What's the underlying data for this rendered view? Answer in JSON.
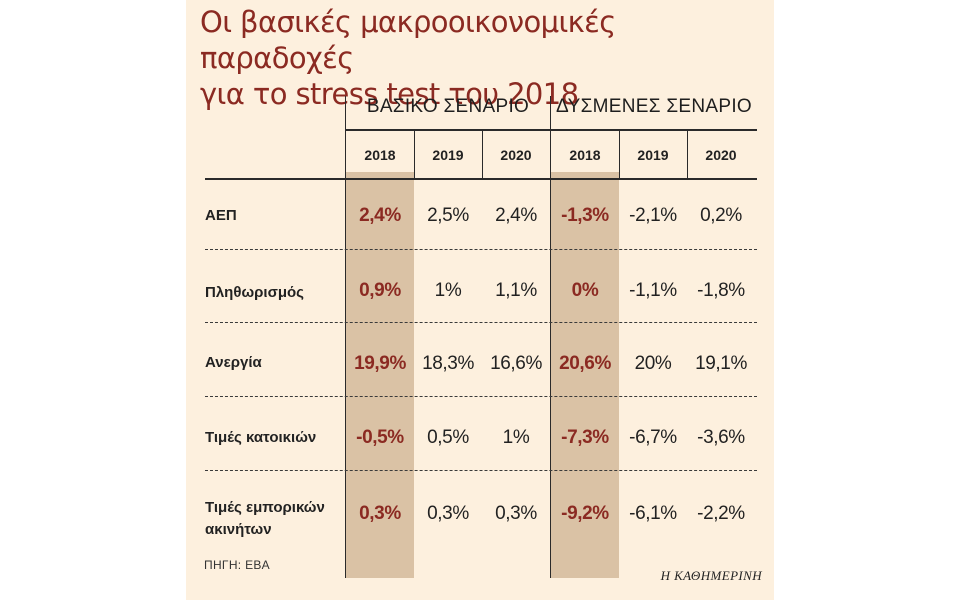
{
  "title_line1": "Οι βασικές μακροοικονομικές παραδοχές",
  "title_line2": "για το stress test του 2018",
  "groups": [
    "ΒΑΣΙΚΟ ΣΕΝΑΡΙΟ",
    "ΔΥΣΜΕΝΕΣ ΣΕΝΑΡΙΟ"
  ],
  "years": [
    "2018",
    "2019",
    "2020",
    "2018",
    "2019",
    "2020"
  ],
  "rows": [
    {
      "label": "ΑΕΠ",
      "values": [
        "2,4%",
        "2,5%",
        "2,4%",
        "-1,3%",
        "-2,1%",
        "0,2%"
      ]
    },
    {
      "label": "Πληθωρισμός",
      "values": [
        "0,9%",
        "1%",
        "1,1%",
        "0%",
        "-1,1%",
        "-1,8%"
      ]
    },
    {
      "label": "Ανεργία",
      "values": [
        "19,9%",
        "18,3%",
        "16,6%",
        "20,6%",
        "20%",
        "19,1%"
      ]
    },
    {
      "label": "Τιμές κατοικιών",
      "values": [
        "-0,5%",
        "0,5%",
        "1%",
        "-7,3%",
        "-6,7%",
        "-3,6%"
      ]
    },
    {
      "label": "Τιμές εμπορικών ακινήτων",
      "values": [
        "0,3%",
        "0,3%",
        "0,3%",
        "-9,2%",
        "-6,1%",
        "-2,2%"
      ]
    }
  ],
  "source": "ΠΗΓΗ: ΕΒΑ",
  "brand": "Η ΚΑΘΗΜΕΡΙΝΗ",
  "colors": {
    "accent": "#8b2a22",
    "highlight": "#dac2a5",
    "background": "#fdf0de"
  }
}
